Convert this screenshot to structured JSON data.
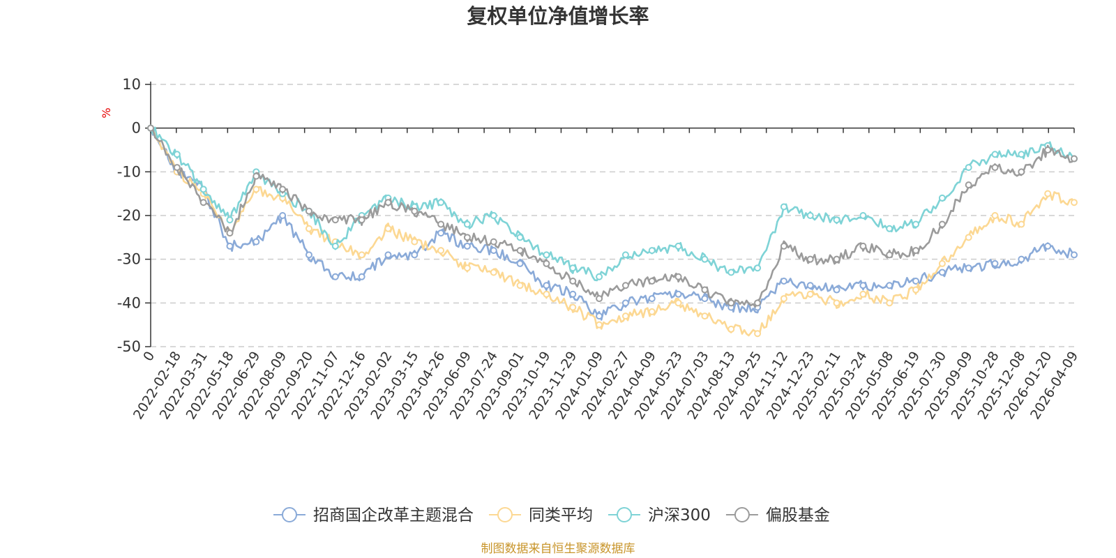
{
  "chart_data": {
    "type": "line",
    "title": "复权单位净值增长率",
    "ylabel": "%",
    "xlabel": "",
    "ylim": [
      -50,
      10
    ],
    "yticks": [
      10,
      0,
      -10,
      -20,
      -30,
      -40,
      -50
    ],
    "categories": [
      "0",
      "2022-02-18",
      "2022-03-31",
      "2022-05-18",
      "2022-06-29",
      "2022-08-09",
      "2022-09-20",
      "2022-11-07",
      "2022-12-16",
      "2023-02-02",
      "2023-03-15",
      "2023-04-26",
      "2023-06-09",
      "2023-07-24",
      "2023-09-01",
      "2023-10-19",
      "2023-11-29",
      "2024-01-09",
      "2024-02-27",
      "2024-04-09",
      "2024-05-23",
      "2024-07-03",
      "2024-08-13",
      "2024-09-25",
      "2024-11-12",
      "2024-12-23",
      "2025-02-11",
      "2025-03-24",
      "2025-05-08",
      "2025-06-19",
      "2025-07-30",
      "2025-09-09",
      "2025-10-28",
      "2025-12-08",
      "2026-01-20",
      "2026-04-09"
    ],
    "series": [
      {
        "name": "招商国企改革主题混合",
        "color": "#8aaad8",
        "values": [
          0,
          -10,
          -14,
          -27,
          -26,
          -20,
          -29,
          -34,
          -34,
          -29,
          -29,
          -24,
          -27,
          -28,
          -31,
          -36,
          -38,
          -43,
          -40,
          -39,
          -38,
          -39,
          -41,
          -41,
          -35,
          -36,
          -37,
          -36,
          -36,
          -35,
          -33,
          -32,
          -31,
          -30,
          -27,
          -29
        ]
      },
      {
        "name": "同类平均",
        "color": "#fcd893",
        "values": [
          0,
          -10,
          -15,
          -24,
          -14,
          -16,
          -23,
          -26,
          -29,
          -23,
          -26,
          -28,
          -32,
          -33,
          -36,
          -38,
          -41,
          -45,
          -43,
          -42,
          -40,
          -43,
          -46,
          -47,
          -39,
          -38,
          -40,
          -38,
          -40,
          -37,
          -31,
          -25,
          -20,
          -22,
          -15,
          -17
        ]
      },
      {
        "name": "沪深300",
        "color": "#7ed3d6",
        "values": [
          0,
          -6,
          -14,
          -21,
          -10,
          -15,
          -19,
          -27,
          -20,
          -16,
          -18,
          -17,
          -22,
          -20,
          -25,
          -29,
          -32,
          -34,
          -29,
          -28,
          -27,
          -30,
          -33,
          -32,
          -18,
          -20,
          -21,
          -20,
          -23,
          -22,
          -16,
          -9,
          -6,
          -6,
          -4,
          -7
        ]
      },
      {
        "name": "偏股基金",
        "color": "#9b9b9b",
        "values": [
          0,
          -9,
          -17,
          -24,
          -11,
          -14,
          -19,
          -21,
          -21,
          -17,
          -19,
          -22,
          -25,
          -26,
          -28,
          -31,
          -35,
          -39,
          -36,
          -35,
          -34,
          -37,
          -40,
          -40,
          -27,
          -30,
          -30,
          -27,
          -29,
          -28,
          -22,
          -13,
          -9,
          -10,
          -5,
          -7
        ]
      }
    ],
    "legend_position": "bottom-center"
  },
  "footer": {
    "source_text": "制图数据来自恒生聚源数据库"
  }
}
